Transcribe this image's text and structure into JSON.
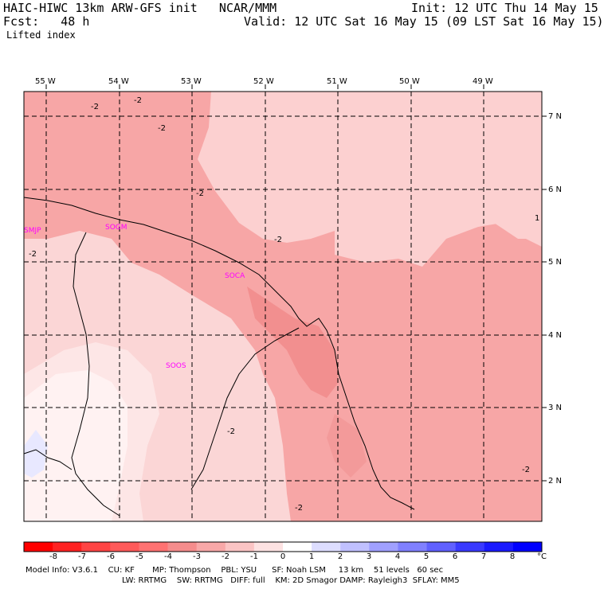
{
  "header": {
    "model_title": "HAIC-HIWC 13km ARW-GFS init   NCAR/MMM",
    "init": "Init: 12 UTC Thu 14 May 15",
    "fcst_label": "Fcst:   48 h",
    "valid": "Valid: 12 UTC Sat 16 May 15 (09 LST Sat 16 May 15)",
    "field": "Lifted index"
  },
  "map": {
    "longitude_labels": [
      "55 W",
      "54 W",
      "53 W",
      "52 W",
      "51 W",
      "50 W",
      "49 W"
    ],
    "latitude_labels": [
      "7 N",
      "6 N",
      "5 N",
      "4 N",
      "3 N",
      "2 N"
    ],
    "stations": [
      "SMJP",
      "SOGM",
      "SOCA",
      "SOOS"
    ],
    "contour_label": "-2",
    "contour_label_1": "1"
  },
  "colorbar": {
    "unit": "°C",
    "labels": [
      "-8",
      "-7",
      "-6",
      "-5",
      "-4",
      "-3",
      "-2",
      "-1",
      "0",
      "1",
      "2",
      "3",
      "4",
      "5",
      "6",
      "7",
      "8"
    ],
    "colors": [
      "#ff0000",
      "#ff2222",
      "#ff4444",
      "#ff5a5a",
      "#ff7272",
      "#f58c8c",
      "#f8a8a8",
      "#fbc4c4",
      "#fde2e2",
      "#ffffff",
      "#ddddff",
      "#c0c0ff",
      "#a0a0ff",
      "#8080ff",
      "#6060ff",
      "#3a3aff",
      "#1a1aff",
      "#0000ff"
    ]
  },
  "footer": {
    "line1": "Model Info: V3.6.1    CU: KF       MP: Thompson    PBL: YSU      SF: Noah LSM     13 km    51 levels   60 sec",
    "line2": "LW: RRTMG    SW: RRTMG   DIFF: full    KM: 2D Smagor DAMP: Rayleigh3  SFLAY: MM5"
  }
}
